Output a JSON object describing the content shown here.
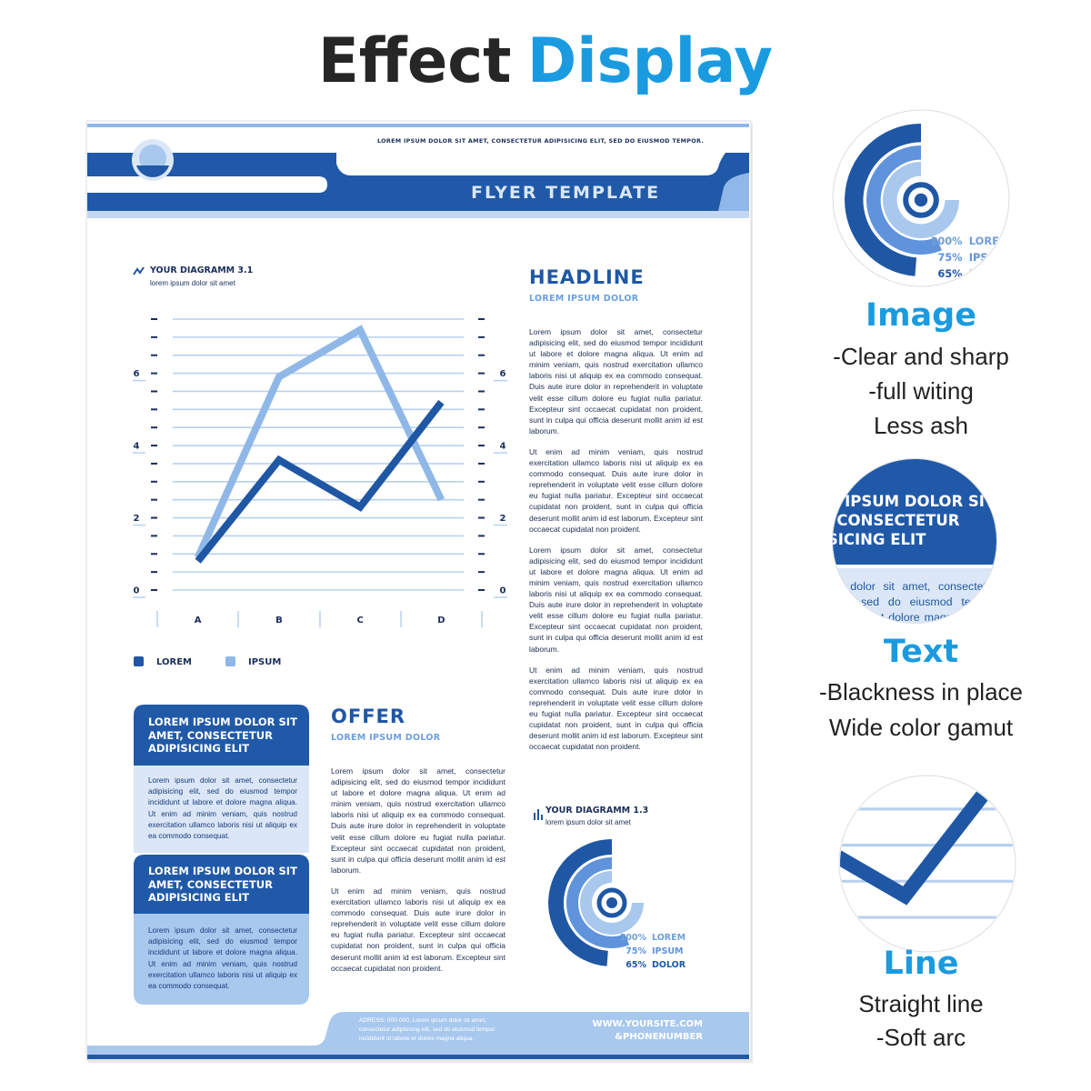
{
  "header": {
    "title": "Effect",
    "title_accent": "Display"
  },
  "flyer": {
    "tagline": "LOREM IPSUM DOLOR SIT AMET, CONSECTETUR ADIPISICING ELIT, SED DO EIUSMOD TEMPOR.",
    "banner": "FLYER TEMPLATE",
    "headline": "HEADLINE",
    "headline_sub": "LOREM IPSUM DOLOR",
    "paragraphs": [
      "Lorem ipsum dolor sit amet, consectetur adipisicing elit, sed do eiusmod tempor incididunt ut labore et dolore magna aliqua. Ut enim ad minim veniam, quis nostrud exercitation ullamco laboris nisi ut aliquip ex ea commodo consequat. Duis aute irure dolor in reprehenderit in voluptate velit esse cillum dolore eu fugiat nulla pariatur. Excepteur sint occaecat cupidatat non proident, sunt in culpa qui officia deserunt mollit anim id est laborum.",
      "Ut enim ad minim veniam, quis nostrud exercitation ullamco laboris nisi ut aliquip ex ea commodo consequat. Duis aute irure dolor in reprehenderit in voluptate velit esse cillum dolore eu fugiat nulla pariatur. Excepteur sint occaecat cupidatat non proident, sunt in culpa qui officia deserunt mollit anim id est laborum. Excepteur sint occaecat cupidatat non proident.",
      "Lorem ipsum dolor sit amet, consectetur adipisicing elit, sed do eiusmod tempor incididunt ut labore et dolore magna aliqua. Ut enim ad minim veniam, quis nostrud exercitation ullamco laboris nisi ut aliquip ex ea commodo consequat. Duis aute irure dolor in reprehenderit in voluptate velit esse cillum dolore eu fugiat nulla pariatur. Excepteur sint occaecat cupidatat non proident, sunt in culpa qui officia deserunt mollit anim id est laborum.",
      "Ut enim ad minim veniam, quis nostrud exercitation ullamco laboris nisi ut aliquip ex ea commodo consequat. Duis aute irure dolor in reprehenderit in voluptate velit esse cillum dolore eu fugiat nulla pariatur. Excepteur sint occaecat cupidatat non proident, sunt in culpa qui officia deserunt mollit anim id est laborum. Excepteur sint occaecat cupidatat non proident."
    ],
    "offer": {
      "title": "OFFER",
      "subtitle": "LOREM IPSUM DOLOR",
      "paragraphs": [
        "Lorem ipsum dolor sit amet, consectetur adipisicing elit, sed do eiusmod tempor incididunt ut labore et dolore magna aliqua. Ut enim ad minim veniam, quis nostrud exercitation ullamco laboris nisi ut aliquip ex ea commodo consequat. Duis aute irure dolor in reprehenderit in voluptate velit esse cillum dolore eu fugiat nulla pariatur. Excepteur sint occaecat cupidatat non proident, sunt in culpa qui officia deserunt mollit anim id est laborum.",
        "Ut enim ad minim veniam, quis nostrud exercitation ullamco laboris nisi ut aliquip ex ea commodo consequat. Duis aute irure dolor in reprehenderit in voluptate velit esse cillum dolore eu fugiat nulla pariatur. Excepteur sint occaecat cupidatat non proident, sunt in culpa qui officia deserunt mollit anim id est laborum. Excepteur sint occaecat cupidatat non proident."
      ]
    },
    "boxes": [
      {
        "heading": "LOREM IPSUM DOLOR SIT AMET, CONSECTETUR ADIPISICING ELIT",
        "body": "Lorem ipsum dolor sit amet, consectetur adipisicing elit, sed do eiusmod tempor incididunt ut labore et dolore magna aliqua. Ut enim ad minim veniam, quis nostrud exercitation ullamco laboris nisi ut aliquip ex ea commodo consequat."
      },
      {
        "heading": "LOREM IPSUM DOLOR SIT AMET, CONSECTETUR ADIPISICING ELIT",
        "body": "Lorem ipsum dolor sit amet, consectetur adipisicing elit, sed do eiusmod tempor incididunt ut labore et dolore magna aliqua. Ut enim ad minim veniam, quis nostrud exercitation ullamco laboris nisi ut aliquip ex ea commodo consequat."
      }
    ],
    "footer": {
      "address": "ADRESS: 000-000, Lorem ipsum dolor sit amet, consectetur adipisicing elit, sed do eiusmod tempor incididunt ut labore et dolore magna aliqua.",
      "site": "WWW.YOURSITE.COM",
      "phone": "&PHONENUMBER"
    }
  },
  "features": [
    {
      "title": "Image",
      "lines": [
        "-Clear and sharp",
        "-full witing",
        "Less ash"
      ]
    },
    {
      "title": "Text",
      "lines": [
        "-Blackness in place",
        "Wide color gamut"
      ]
    },
    {
      "title": "Line",
      "lines": [
        "Straight line",
        "-Soft arc"
      ]
    }
  ],
  "chart_data": [
    {
      "type": "line",
      "title": "YOUR DIAGRAMM 3.1",
      "subtitle": "lorem ipsum dolor sit amet",
      "categories": [
        "A",
        "B",
        "C",
        "D"
      ],
      "series": [
        {
          "name": "LOREM",
          "color": "#1f57a4",
          "values": [
            0.8,
            3.6,
            2.3,
            5.2
          ]
        },
        {
          "name": "IPSUM",
          "color": "#8fb8e8",
          "values": [
            0.9,
            5.9,
            7.2,
            2.5
          ]
        }
      ],
      "ylim": [
        0,
        7.5
      ],
      "yticks": [
        0,
        2,
        4,
        6
      ],
      "minor_yticks": [
        0.5,
        1,
        1.5,
        2.5,
        3,
        3.5,
        4.5,
        5,
        5.5,
        6.5,
        7,
        7.5
      ],
      "grid": true
    },
    {
      "type": "radial",
      "title": "YOUR DIAGRAMM 1.3",
      "subtitle": "lorem ipsum dolor sit amet",
      "categories": [
        "LOREM",
        "IPSUM",
        "DOLOR"
      ],
      "values": [
        100,
        75,
        65
      ],
      "value_labels": [
        "100%",
        "75%",
        "65%"
      ],
      "colors": [
        "#a9c8ee",
        "#5f93dc",
        "#1f57a4"
      ]
    }
  ]
}
